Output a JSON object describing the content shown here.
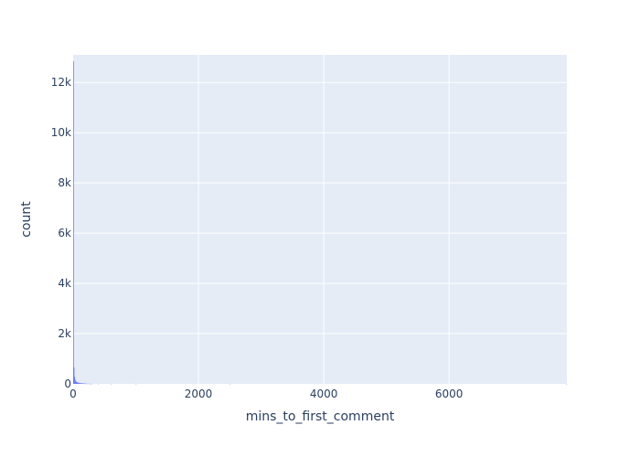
{
  "chart_data": {
    "type": "bar",
    "title": "",
    "xlabel": "mins_to_first_comment",
    "ylabel": "count",
    "xlim": [
      0,
      7880
    ],
    "ylim": [
      0,
      13100
    ],
    "grid": true,
    "colors": {
      "plot_bg": "#e5ecf6",
      "grid": "#ffffff",
      "bar": "#636efa",
      "text": "#2a3f5f"
    },
    "x_ticks": [
      {
        "value": 0,
        "label": "0"
      },
      {
        "value": 2000,
        "label": "2000"
      },
      {
        "value": 4000,
        "label": "4000"
      },
      {
        "value": 6000,
        "label": "6000"
      }
    ],
    "y_ticks": [
      {
        "value": 0,
        "label": "0"
      },
      {
        "value": 2000,
        "label": "2k"
      },
      {
        "value": 4000,
        "label": "4k"
      },
      {
        "value": 6000,
        "label": "6k"
      },
      {
        "value": 8000,
        "label": "8k"
      },
      {
        "value": 10000,
        "label": "10k"
      },
      {
        "value": 12000,
        "label": "12k"
      }
    ],
    "bin_width": 10,
    "bins": [
      {
        "x0": 0,
        "count": 12850
      },
      {
        "x0": 10,
        "count": 650
      },
      {
        "x0": 20,
        "count": 280
      },
      {
        "x0": 30,
        "count": 160
      },
      {
        "x0": 40,
        "count": 110
      },
      {
        "x0": 50,
        "count": 80
      },
      {
        "x0": 60,
        "count": 70
      },
      {
        "x0": 70,
        "count": 55
      },
      {
        "x0": 80,
        "count": 45
      },
      {
        "x0": 90,
        "count": 40
      },
      {
        "x0": 100,
        "count": 35
      },
      {
        "x0": 110,
        "count": 30
      },
      {
        "x0": 120,
        "count": 28
      },
      {
        "x0": 130,
        "count": 25
      },
      {
        "x0": 140,
        "count": 22
      },
      {
        "x0": 150,
        "count": 20
      },
      {
        "x0": 160,
        "count": 18
      },
      {
        "x0": 170,
        "count": 16
      },
      {
        "x0": 180,
        "count": 15
      },
      {
        "x0": 190,
        "count": 13
      },
      {
        "x0": 200,
        "count": 12
      },
      {
        "x0": 220,
        "count": 10
      },
      {
        "x0": 240,
        "count": 8
      },
      {
        "x0": 260,
        "count": 6
      },
      {
        "x0": 280,
        "count": 5
      },
      {
        "x0": 300,
        "count": 4
      },
      {
        "x0": 400,
        "count": 2
      },
      {
        "x0": 600,
        "count": 1
      },
      {
        "x0": 1000,
        "count": 1
      },
      {
        "x0": 2500,
        "count": 1
      },
      {
        "x0": 7870,
        "count": 1
      }
    ]
  }
}
